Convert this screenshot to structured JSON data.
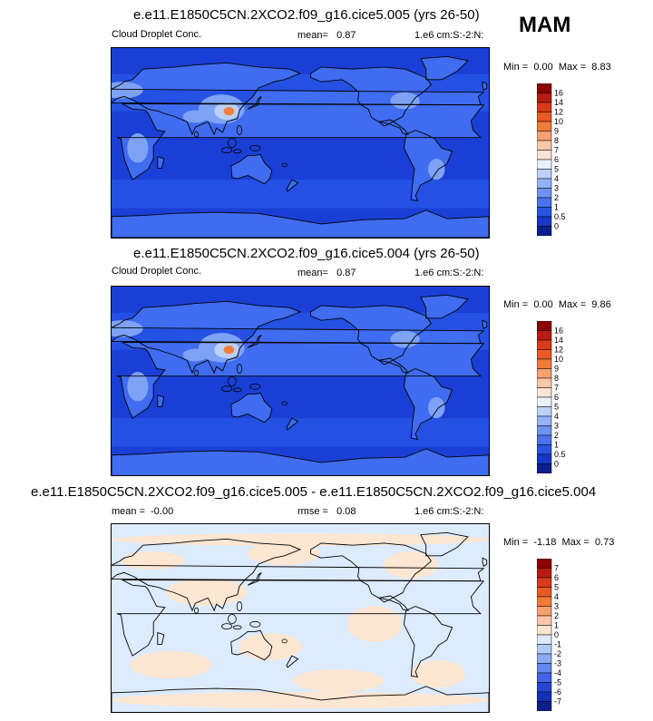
{
  "season": "MAM",
  "colors": {
    "ocean_deep": "#1a3fd6",
    "ocean": "#2451e3",
    "mid": "#3f6cf0",
    "light": "#7ea2f5",
    "pale": "#bcd2fa",
    "white": "#f2f6ff",
    "orange": "#f08040",
    "diff_warm": "#fde6d2",
    "diff_cool": "#dcebfd"
  },
  "panels": [
    {
      "title": "e.e11.E1850C5CN.2XCO2.f09_g16.cice5.005 (yrs 26-50)",
      "variable": "Cloud Droplet Conc.",
      "mean_label": "mean=",
      "mean_value": "0.87",
      "units": "1.e6 cm:S:-2:N:",
      "min_label": "Min =",
      "min_value": "0.00",
      "max_label": "Max =",
      "max_value": "8.83",
      "colorbar_labels": [
        "16",
        "14",
        "12",
        "10",
        "9",
        "8",
        "7",
        "6",
        "5",
        "4",
        "3",
        "2",
        "1",
        "0.5",
        "0"
      ],
      "colorbar_colors": [
        "#8b0000",
        "#b81c10",
        "#d83a1a",
        "#ea5a25",
        "#f27c3a",
        "#f7a070",
        "#fbc7a8",
        "#fbe4d6",
        "#eaf1fe",
        "#bcd2fa",
        "#94b2f7",
        "#6e92f2",
        "#4a72ec",
        "#2a54e0",
        "#1638c8",
        "#0a1e8c"
      ]
    },
    {
      "title": "e.e11.E1850C5CN.2XCO2.f09_g16.cice5.004 (yrs 26-50)",
      "variable": "Cloud Droplet Conc.",
      "mean_label": "mean=",
      "mean_value": "0.87",
      "units": "1.e6 cm:S:-2:N:",
      "min_label": "Min =",
      "min_value": "0.00",
      "max_label": "Max =",
      "max_value": "9.86",
      "colorbar_labels": [
        "16",
        "14",
        "12",
        "10",
        "9",
        "8",
        "7",
        "6",
        "5",
        "4",
        "3",
        "2",
        "1",
        "0.5",
        "0"
      ],
      "colorbar_colors": [
        "#8b0000",
        "#b81c10",
        "#d83a1a",
        "#ea5a25",
        "#f27c3a",
        "#f7a070",
        "#fbc7a8",
        "#fbe4d6",
        "#eaf1fe",
        "#bcd2fa",
        "#94b2f7",
        "#6e92f2",
        "#4a72ec",
        "#2a54e0",
        "#1638c8",
        "#0a1e8c"
      ]
    },
    {
      "title": "e.e11.E1850C5CN.2XCO2.f09_g16.cice5.005 - e.e11.E1850C5CN.2XCO2.f09_g16.cice5.004",
      "mean_label": "mean =",
      "mean_value": "-0.00",
      "rmse_label": "rmse =",
      "rmse_value": "0.08",
      "units": "1.e6 cm:S:-2:N:",
      "min_label": "Min =",
      "min_value": "-1.18",
      "max_label": "Max =",
      "max_value": "0.73",
      "colorbar_labels": [
        "7",
        "6",
        "5",
        "4",
        "3",
        "2",
        "1",
        "0",
        "-1",
        "-2",
        "-3",
        "-4",
        "-5",
        "-6",
        "-7"
      ],
      "colorbar_colors": [
        "#8b0000",
        "#b81c10",
        "#d83a1a",
        "#ea5a25",
        "#f27c3a",
        "#f7a070",
        "#fbc7a8",
        "#fde6d2",
        "#dcebfd",
        "#b2ccf9",
        "#8aaaf5",
        "#6488f0",
        "#4066e8",
        "#2446d4",
        "#1430b4",
        "#0a1e8c"
      ]
    }
  ]
}
